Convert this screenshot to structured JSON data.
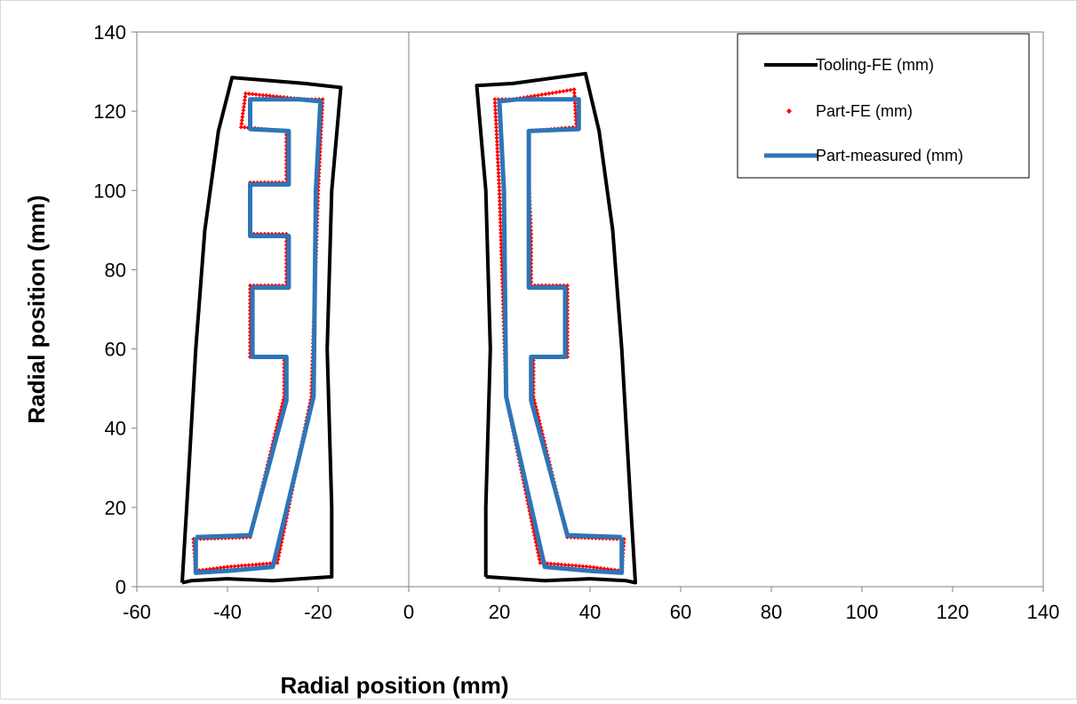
{
  "chart_data": {
    "type": "line",
    "xlabel": "Radial position (mm)",
    "ylabel": "Radial position (mm)",
    "xlim": [
      -60,
      140
    ],
    "ylim": [
      0,
      140
    ],
    "xticks": [
      -60,
      -40,
      -20,
      0,
      20,
      40,
      60,
      80,
      100,
      120,
      140
    ],
    "yticks": [
      0,
      20,
      40,
      60,
      80,
      100,
      120,
      140
    ],
    "x_tick_labels": [
      "-60",
      "-40",
      "-20",
      "0",
      "20",
      "40",
      "60",
      "80",
      "100",
      "120",
      "140"
    ],
    "y_tick_labels": [
      "0",
      "20",
      "40",
      "60",
      "80",
      "100",
      "120",
      "140"
    ],
    "legend_position": "top-right",
    "series": [
      {
        "name": "Tooling-FE (mm)",
        "color": "#000000",
        "style": "line",
        "paths": [
          [
            [
              -50,
              1
            ],
            [
              -48,
              1.5
            ],
            [
              -40,
              2
            ],
            [
              -30,
              1.5
            ],
            [
              -17,
              2.5
            ],
            [
              -17,
              20
            ],
            [
              -18,
              60
            ],
            [
              -17,
              100
            ],
            [
              -15,
              126
            ],
            [
              -23,
              127
            ],
            [
              -39,
              128.5
            ],
            [
              -42,
              115
            ],
            [
              -45,
              90
            ],
            [
              -47,
              60
            ],
            [
              -49,
              20
            ],
            [
              -50,
              1
            ]
          ],
          [
            [
              17,
              2.5
            ],
            [
              30,
              1.5
            ],
            [
              40,
              2
            ],
            [
              48,
              1.5
            ],
            [
              50,
              1
            ],
            [
              49,
              20
            ],
            [
              47,
              60
            ],
            [
              45,
              90
            ],
            [
              42,
              115
            ],
            [
              39,
              129.5
            ],
            [
              23,
              127
            ],
            [
              15,
              126.5
            ],
            [
              17,
              100
            ],
            [
              18,
              60
            ],
            [
              17,
              20
            ],
            [
              17,
              2.5
            ]
          ]
        ]
      },
      {
        "name": "Part-FE (mm)",
        "color": "#ff0000",
        "style": "markers",
        "paths": [
          [
            [
              -47.5,
              12
            ],
            [
              -35,
              12.5
            ],
            [
              -27.5,
              48
            ],
            [
              -27.5,
              58
            ],
            [
              -35,
              58
            ],
            [
              -35,
              76
            ],
            [
              -27,
              76
            ],
            [
              -27,
              89
            ],
            [
              -35,
              89
            ],
            [
              -35,
              102
            ],
            [
              -27,
              102
            ],
            [
              -27,
              115
            ],
            [
              -37,
              116
            ],
            [
              -36,
              124.5
            ],
            [
              -23,
              123
            ],
            [
              -19,
              123
            ],
            [
              -20,
              100
            ],
            [
              -21.5,
              48
            ],
            [
              -29,
              6
            ],
            [
              -40,
              5
            ],
            [
              -47,
              4
            ],
            [
              -47.5,
              12
            ]
          ],
          [
            [
              47.5,
              12
            ],
            [
              35,
              12.5
            ],
            [
              27.5,
              48
            ],
            [
              27.5,
              58
            ],
            [
              35,
              58
            ],
            [
              35,
              76
            ],
            [
              27,
              76
            ],
            [
              27,
              89
            ],
            [
              26.5,
              102
            ],
            [
              26.5,
              115
            ],
            [
              37,
              116
            ],
            [
              36.5,
              125.5
            ],
            [
              23,
              123
            ],
            [
              19,
              123
            ],
            [
              20,
              100
            ],
            [
              21.5,
              48
            ],
            [
              29,
              6
            ],
            [
              40,
              5
            ],
            [
              47,
              4
            ],
            [
              47.5,
              12
            ]
          ]
        ]
      },
      {
        "name": "Part-measured (mm)",
        "color": "#2e75b6",
        "style": "line",
        "paths": [
          [
            [
              -47,
              12.5
            ],
            [
              -35,
              13
            ],
            [
              -27,
              47
            ],
            [
              -27,
              58
            ],
            [
              -34.5,
              58
            ],
            [
              -34.5,
              75.5
            ],
            [
              -26.5,
              75.5
            ],
            [
              -26.5,
              88.5
            ],
            [
              -35,
              88.5
            ],
            [
              -35,
              101.5
            ],
            [
              -26.5,
              101.5
            ],
            [
              -26.5,
              115
            ],
            [
              -35,
              115.5
            ],
            [
              -35,
              123
            ],
            [
              -24,
              123
            ],
            [
              -19.5,
              122.5
            ],
            [
              -20.5,
              100
            ],
            [
              -21,
              48
            ],
            [
              -30,
              5
            ],
            [
              -40,
              4
            ],
            [
              -47,
              3.5
            ],
            [
              -47,
              12.5
            ]
          ],
          [
            [
              47,
              12.5
            ],
            [
              35,
              13
            ],
            [
              27,
              47
            ],
            [
              27,
              58
            ],
            [
              34.5,
              58
            ],
            [
              34.5,
              75.5
            ],
            [
              26.5,
              75.5
            ],
            [
              26.5,
              88.5
            ],
            [
              26.5,
              101.5
            ],
            [
              26.5,
              115
            ],
            [
              37.5,
              115.5
            ],
            [
              37.5,
              123
            ],
            [
              24,
              123
            ],
            [
              20,
              122.5
            ],
            [
              21,
              100
            ],
            [
              21.5,
              48
            ],
            [
              30,
              5
            ],
            [
              40,
              4
            ],
            [
              47,
              3.5
            ],
            [
              47,
              12.5
            ]
          ]
        ]
      }
    ]
  }
}
